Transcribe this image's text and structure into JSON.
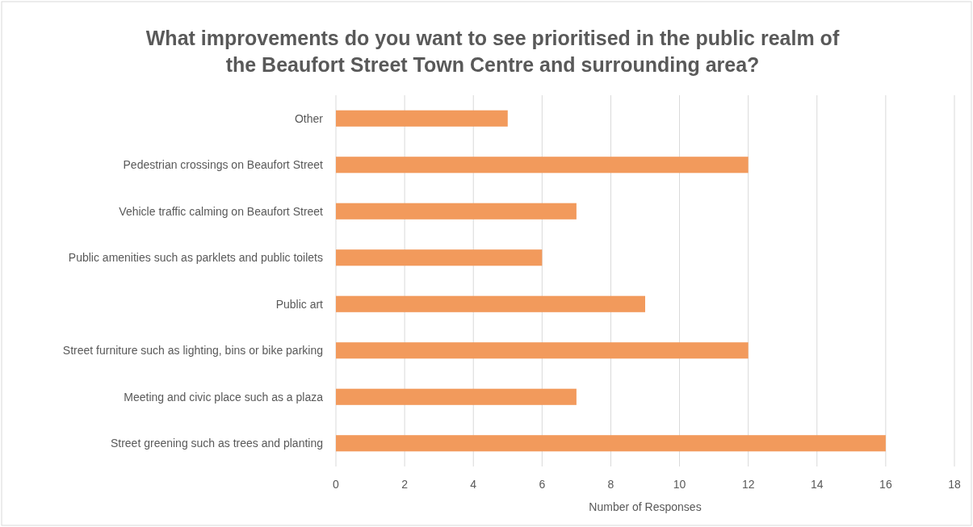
{
  "chart_data": {
    "type": "bar",
    "orientation": "horizontal",
    "title": "What improvements do you want to see prioritised in the public realm of\nthe Beaufort Street Town Centre and surrounding area?",
    "xlabel": "Number of Responses",
    "categories": [
      "Other",
      "Pedestrian crossings on Beaufort Street",
      "Vehicle traffic calming on Beaufort Street",
      "Public amenities such as parklets and public toilets",
      "Public art",
      "Street furniture such as lighting, bins or bike parking",
      "Meeting and civic place such as a plaza",
      "Street greening such as trees and planting"
    ],
    "values": [
      5,
      12,
      7,
      6,
      9,
      12,
      7,
      16
    ],
    "color": "#f29a5c",
    "xlim": [
      0,
      18
    ],
    "xticks": [
      0,
      2,
      4,
      6,
      8,
      10,
      12,
      14,
      16,
      18
    ],
    "grid": "x"
  }
}
